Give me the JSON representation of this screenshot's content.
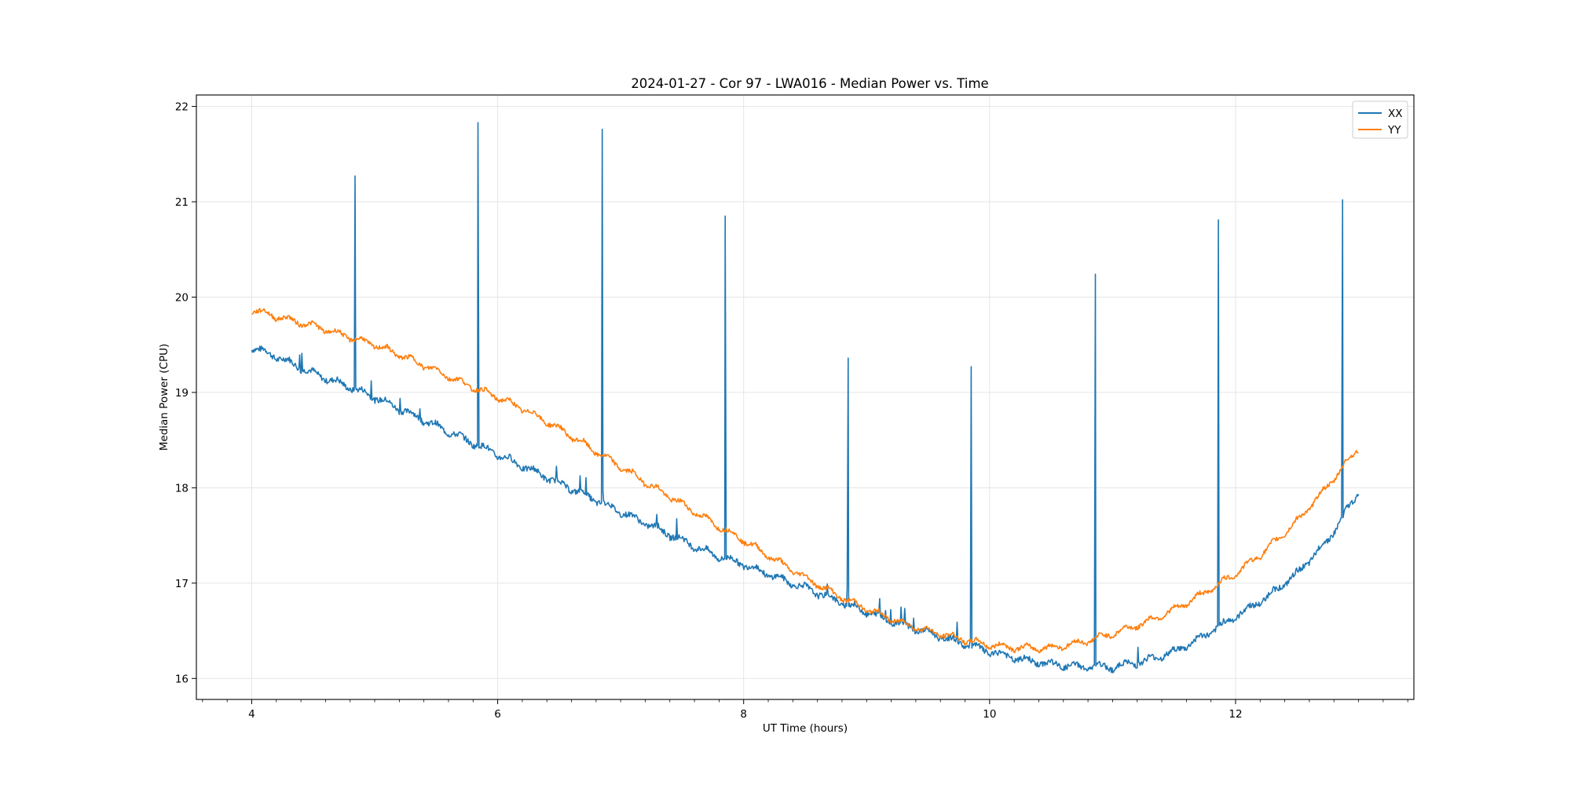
{
  "chart_data": {
    "type": "line",
    "title": "2024-01-27 - Cor 97 - LWA016 - Median Power vs. Time",
    "xlabel": "UT Time (hours)",
    "ylabel": "Median Power (CPU)",
    "xlim": [
      3.55,
      13.45
    ],
    "ylim": [
      15.78,
      22.12
    ],
    "xticks": [
      4,
      6,
      8,
      10,
      12
    ],
    "yticks": [
      16,
      17,
      18,
      19,
      20,
      21,
      22
    ],
    "x_minor_step": 0.2,
    "grid": true,
    "legend_position": "top-right",
    "series": [
      {
        "name": "XX",
        "color": "#1f77b4",
        "x": [
          4.0,
          4.25,
          4.5,
          4.75,
          5.0,
          5.25,
          5.5,
          5.75,
          6.0,
          6.25,
          6.5,
          6.75,
          7.0,
          7.25,
          7.5,
          7.75,
          8.0,
          8.25,
          8.5,
          8.75,
          9.0,
          9.25,
          9.5,
          9.75,
          10.0,
          10.25,
          10.5,
          10.75,
          11.0,
          11.25,
          11.5,
          11.75,
          12.0,
          12.25,
          12.5,
          12.75,
          13.0
        ],
        "values": [
          19.48,
          19.35,
          19.2,
          19.08,
          18.95,
          18.8,
          18.65,
          18.5,
          18.35,
          18.2,
          18.05,
          17.9,
          17.75,
          17.6,
          17.45,
          17.3,
          17.2,
          17.07,
          16.95,
          16.82,
          16.7,
          16.58,
          16.48,
          16.38,
          16.28,
          16.2,
          16.15,
          16.12,
          16.12,
          16.18,
          16.28,
          16.45,
          16.65,
          16.85,
          17.1,
          17.45,
          17.95
        ],
        "spikes": [
          {
            "x": 4.84,
            "y": 21.27
          },
          {
            "x": 5.84,
            "y": 21.83
          },
          {
            "x": 6.85,
            "y": 21.76
          },
          {
            "x": 7.85,
            "y": 20.85
          },
          {
            "x": 8.85,
            "y": 19.36
          },
          {
            "x": 9.85,
            "y": 19.27
          },
          {
            "x": 10.86,
            "y": 20.24
          },
          {
            "x": 11.86,
            "y": 20.81
          },
          {
            "x": 12.87,
            "y": 21.02
          }
        ]
      },
      {
        "name": "YY",
        "color": "#ff7f0e",
        "x": [
          4.0,
          4.25,
          4.5,
          4.75,
          5.0,
          5.25,
          5.5,
          5.75,
          6.0,
          6.25,
          6.5,
          6.75,
          7.0,
          7.25,
          7.5,
          7.75,
          8.0,
          8.25,
          8.5,
          8.75,
          9.0,
          9.25,
          9.5,
          9.75,
          10.0,
          10.25,
          10.5,
          10.75,
          11.0,
          11.25,
          11.5,
          11.75,
          12.0,
          12.25,
          12.5,
          12.75,
          13.0
        ],
        "values": [
          19.87,
          19.78,
          19.7,
          19.6,
          19.5,
          19.37,
          19.23,
          19.08,
          18.95,
          18.8,
          18.62,
          18.42,
          18.22,
          18.02,
          17.83,
          17.63,
          17.45,
          17.25,
          17.06,
          16.88,
          16.73,
          16.6,
          16.5,
          16.42,
          16.35,
          16.32,
          16.32,
          16.38,
          16.47,
          16.58,
          16.72,
          16.9,
          17.1,
          17.35,
          17.65,
          18.02,
          18.42
        ],
        "spikes": []
      }
    ]
  }
}
